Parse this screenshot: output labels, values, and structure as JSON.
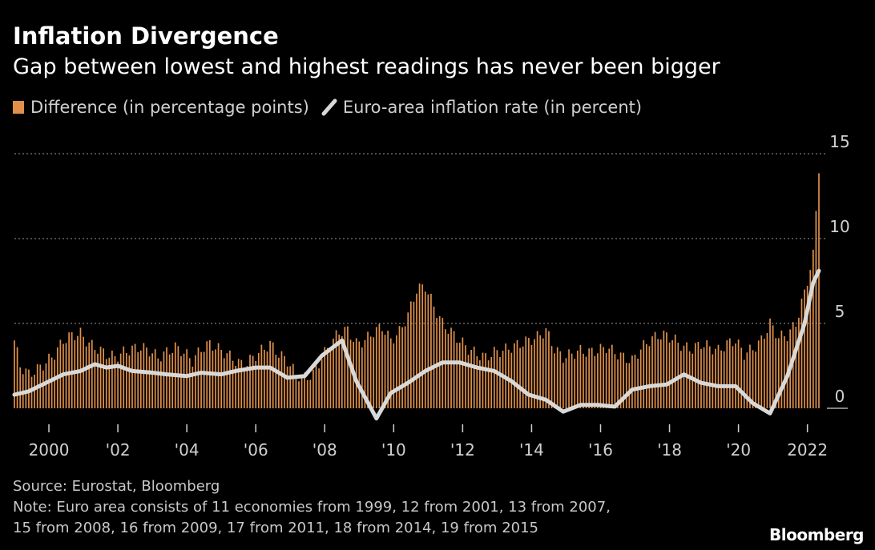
{
  "title": "Inflation Divergence",
  "subtitle": "Gap between lowest and highest readings has never been bigger",
  "legend": {
    "bar_label": "Difference (in percentage points)",
    "line_label": "Euro-area inflation rate (in percent)"
  },
  "footer": {
    "source": "Source: Eurostat, Bloomberg",
    "note_line1": "Note: Euro area consists of 11 economies from 1999, 12 from 2001, 13 from 2007,",
    "note_line2": "15 from 2008, 16 from 2009, 17 from 2011, 18 from 2014, 19 from 2015",
    "brand": "Bloomberg"
  },
  "colors": {
    "bar": "#e0904a",
    "line": "#d9d9d9",
    "grid": "#9a9a9a",
    "axis_text": "#d0d0d0",
    "background": "#000000"
  },
  "chart_data": {
    "type": "bar",
    "x_unit": "month",
    "x_start": "1999-01",
    "x_end": "2022-05",
    "ylim": [
      -0.5,
      15
    ],
    "y_ticks": [
      0,
      5,
      10,
      15
    ],
    "y_tick_labels": [
      "0",
      "5",
      "10",
      "15"
    ],
    "x_ticks": [
      2000,
      2002,
      2004,
      2006,
      2008,
      2010,
      2012,
      2014,
      2016,
      2018,
      2020,
      2022
    ],
    "x_tick_labels": [
      "2000",
      "'02",
      "'04",
      "'06",
      "'08",
      "'10",
      "'12",
      "'14",
      "'16",
      "'18",
      "'20",
      "2022"
    ],
    "grid": "horizontal dotted",
    "legend_position": "top-left",
    "series": [
      {
        "name": "Difference (in percentage points)",
        "type": "bar",
        "points": [
          [
            "1999-01",
            4.0
          ],
          [
            "1999-03",
            2.5
          ],
          [
            "1999-06",
            2.0
          ],
          [
            "1999-09",
            2.3
          ],
          [
            "1999-12",
            2.7
          ],
          [
            "2000-03",
            3.2
          ],
          [
            "2000-06",
            4.0
          ],
          [
            "2000-09",
            4.3
          ],
          [
            "2000-12",
            4.4
          ],
          [
            "2001-03",
            3.8
          ],
          [
            "2001-06",
            3.5
          ],
          [
            "2001-09",
            3.2
          ],
          [
            "2001-12",
            3.0
          ],
          [
            "2002-03",
            3.3
          ],
          [
            "2002-06",
            3.5
          ],
          [
            "2002-09",
            3.6
          ],
          [
            "2002-12",
            3.4
          ],
          [
            "2003-03",
            3.0
          ],
          [
            "2003-06",
            3.3
          ],
          [
            "2003-09",
            3.6
          ],
          [
            "2003-12",
            3.3
          ],
          [
            "2004-03",
            2.8
          ],
          [
            "2004-06",
            3.5
          ],
          [
            "2004-09",
            3.8
          ],
          [
            "2004-12",
            3.5
          ],
          [
            "2005-03",
            3.2
          ],
          [
            "2005-06",
            2.8
          ],
          [
            "2005-09",
            2.5
          ],
          [
            "2005-12",
            3.0
          ],
          [
            "2006-03",
            3.4
          ],
          [
            "2006-06",
            3.8
          ],
          [
            "2006-09",
            3.2
          ],
          [
            "2006-12",
            2.8
          ],
          [
            "2007-03",
            2.0
          ],
          [
            "2007-06",
            1.8
          ],
          [
            "2007-09",
            2.0
          ],
          [
            "2007-12",
            3.0
          ],
          [
            "2008-03",
            3.8
          ],
          [
            "2008-06",
            4.5
          ],
          [
            "2008-09",
            4.6
          ],
          [
            "2008-12",
            3.8
          ],
          [
            "2009-03",
            4.0
          ],
          [
            "2009-06",
            4.5
          ],
          [
            "2009-09",
            4.8
          ],
          [
            "2009-12",
            4.0
          ],
          [
            "2010-03",
            4.5
          ],
          [
            "2010-06",
            5.5
          ],
          [
            "2010-09",
            7.0
          ],
          [
            "2010-12",
            7.2
          ],
          [
            "2011-03",
            6.0
          ],
          [
            "2011-06",
            5.0
          ],
          [
            "2011-09",
            4.5
          ],
          [
            "2011-12",
            4.0
          ],
          [
            "2012-03",
            3.5
          ],
          [
            "2012-06",
            3.2
          ],
          [
            "2012-09",
            3.0
          ],
          [
            "2012-12",
            3.3
          ],
          [
            "2013-03",
            3.4
          ],
          [
            "2013-06",
            3.6
          ],
          [
            "2013-09",
            3.8
          ],
          [
            "2013-12",
            4.0
          ],
          [
            "2014-03",
            4.2
          ],
          [
            "2014-06",
            4.6
          ],
          [
            "2014-09",
            3.5
          ],
          [
            "2014-12",
            3.0
          ],
          [
            "2015-03",
            3.2
          ],
          [
            "2015-06",
            3.4
          ],
          [
            "2015-09",
            3.3
          ],
          [
            "2015-12",
            3.4
          ],
          [
            "2016-03",
            3.6
          ],
          [
            "2016-06",
            3.3
          ],
          [
            "2016-09",
            3.0
          ],
          [
            "2016-12",
            2.8
          ],
          [
            "2017-03",
            3.5
          ],
          [
            "2017-06",
            4.0
          ],
          [
            "2017-09",
            4.3
          ],
          [
            "2017-12",
            4.3
          ],
          [
            "2018-03",
            4.0
          ],
          [
            "2018-06",
            3.6
          ],
          [
            "2018-09",
            3.5
          ],
          [
            "2018-12",
            3.8
          ],
          [
            "2019-03",
            3.6
          ],
          [
            "2019-06",
            3.4
          ],
          [
            "2019-09",
            3.8
          ],
          [
            "2019-12",
            4.0
          ],
          [
            "2020-03",
            3.2
          ],
          [
            "2020-06",
            3.5
          ],
          [
            "2020-09",
            4.0
          ],
          [
            "2020-12",
            5.0
          ],
          [
            "2021-03",
            4.2
          ],
          [
            "2021-06",
            4.3
          ],
          [
            "2021-09",
            5.0
          ],
          [
            "2021-12",
            6.8
          ],
          [
            "2022-03",
            9.0
          ],
          [
            "2022-05",
            14.2
          ]
        ]
      },
      {
        "name": "Euro-area inflation rate (in percent)",
        "type": "line",
        "points": [
          [
            "1999-01",
            0.8
          ],
          [
            "1999-06",
            1.0
          ],
          [
            "1999-12",
            1.5
          ],
          [
            "2000-06",
            2.0
          ],
          [
            "2000-12",
            2.2
          ],
          [
            "2001-05",
            2.6
          ],
          [
            "2001-09",
            2.4
          ],
          [
            "2002-01",
            2.5
          ],
          [
            "2002-06",
            2.2
          ],
          [
            "2003-01",
            2.1
          ],
          [
            "2003-06",
            2.0
          ],
          [
            "2004-01",
            1.9
          ],
          [
            "2004-06",
            2.1
          ],
          [
            "2005-01",
            2.0
          ],
          [
            "2005-06",
            2.2
          ],
          [
            "2006-01",
            2.4
          ],
          [
            "2006-06",
            2.4
          ],
          [
            "2006-12",
            1.8
          ],
          [
            "2007-06",
            1.9
          ],
          [
            "2007-12",
            3.1
          ],
          [
            "2008-07",
            4.0
          ],
          [
            "2008-12",
            1.6
          ],
          [
            "2009-07",
            -0.6
          ],
          [
            "2009-12",
            0.9
          ],
          [
            "2010-06",
            1.5
          ],
          [
            "2010-12",
            2.2
          ],
          [
            "2011-06",
            2.7
          ],
          [
            "2011-12",
            2.7
          ],
          [
            "2012-06",
            2.4
          ],
          [
            "2012-12",
            2.2
          ],
          [
            "2013-06",
            1.6
          ],
          [
            "2013-12",
            0.8
          ],
          [
            "2014-06",
            0.5
          ],
          [
            "2014-12",
            -0.2
          ],
          [
            "2015-06",
            0.2
          ],
          [
            "2015-12",
            0.2
          ],
          [
            "2016-06",
            0.1
          ],
          [
            "2016-12",
            1.1
          ],
          [
            "2017-06",
            1.3
          ],
          [
            "2017-12",
            1.4
          ],
          [
            "2018-06",
            2.0
          ],
          [
            "2018-12",
            1.5
          ],
          [
            "2019-06",
            1.3
          ],
          [
            "2019-12",
            1.3
          ],
          [
            "2020-06",
            0.3
          ],
          [
            "2020-12",
            -0.3
          ],
          [
            "2021-06",
            1.9
          ],
          [
            "2021-12",
            5.0
          ],
          [
            "2022-03",
            7.4
          ],
          [
            "2022-05",
            8.1
          ]
        ]
      }
    ]
  }
}
